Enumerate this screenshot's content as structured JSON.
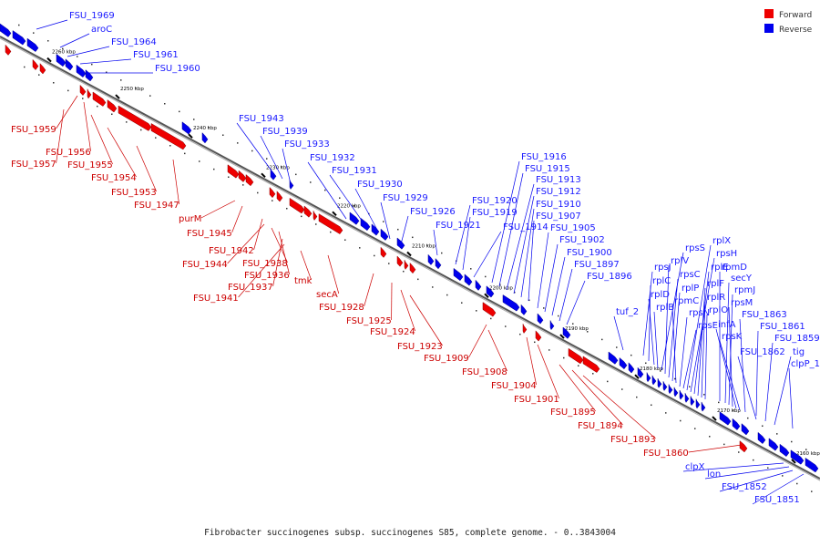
{
  "legend": {
    "forward_label": "Forward",
    "reverse_label": "Reverse",
    "forward_color": "#ee0000",
    "reverse_color": "#0000ee"
  },
  "caption": "Fibrobacter succinogenes subsp. succinogenes S85, complete genome. - 0..3843004",
  "ticks": [
    "2260 kbp",
    "2250 kbp",
    "2240 kbp",
    "2230 kbp",
    "2220 kbp",
    "2210 kbp",
    "2200 kbp",
    "2190 kbp",
    "2180 kbp",
    "2170 kbp",
    "2160 kbp"
  ],
  "labels_reverse": [
    "FSU_1969",
    "aroC",
    "FSU_1964",
    "FSU_1961",
    "FSU_1960",
    "FSU_1943",
    "FSU_1939",
    "FSU_1933",
    "FSU_1932",
    "FSU_1931",
    "FSU_1930",
    "FSU_1929",
    "FSU_1926",
    "FSU_1921",
    "FSU_1920",
    "FSU_1919",
    "FSU_1914",
    "FSU_1916",
    "FSU_1915",
    "FSU_1913",
    "FSU_1912",
    "FSU_1910",
    "FSU_1907",
    "FSU_1905",
    "FSU_1902",
    "FSU_1900",
    "FSU_1897",
    "FSU_1896",
    "tuf_2",
    "rpsJ",
    "rplC",
    "rplD",
    "rplB",
    "rpsS",
    "rplV",
    "rpsC",
    "rplP",
    "rpmC",
    "rpsN",
    "rpsE",
    "rplX",
    "rpsH",
    "rplE",
    "rplF",
    "rplR",
    "rplO",
    "rpmD",
    "secY",
    "rpmJ",
    "rpsM",
    "infA",
    "rpsK",
    "FSU_1863",
    "FSU_1861",
    "FSU_1862",
    "FSU_1859",
    "tig",
    "clpP_1",
    "clpX",
    "lon",
    "FSU_1852",
    "FSU_1851"
  ],
  "labels_forward": [
    "FSU_1959",
    "FSU_1956",
    "FSU_1957",
    "FSU_1955",
    "FSU_1954",
    "FSU_1953",
    "FSU_1947",
    "purM",
    "FSU_1945",
    "FSU_1942",
    "FSU_1944",
    "FSU_1938",
    "FSU_1936",
    "FSU_1937",
    "FSU_1941",
    "tmk",
    "secA",
    "FSU_1928",
    "FSU_1925",
    "FSU_1924",
    "FSU_1923",
    "FSU_1909",
    "FSU_1908",
    "FSU_1904",
    "FSU_1901",
    "FSU_1895",
    "FSU_1894",
    "FSU_1893",
    "FSU_1860"
  ]
}
